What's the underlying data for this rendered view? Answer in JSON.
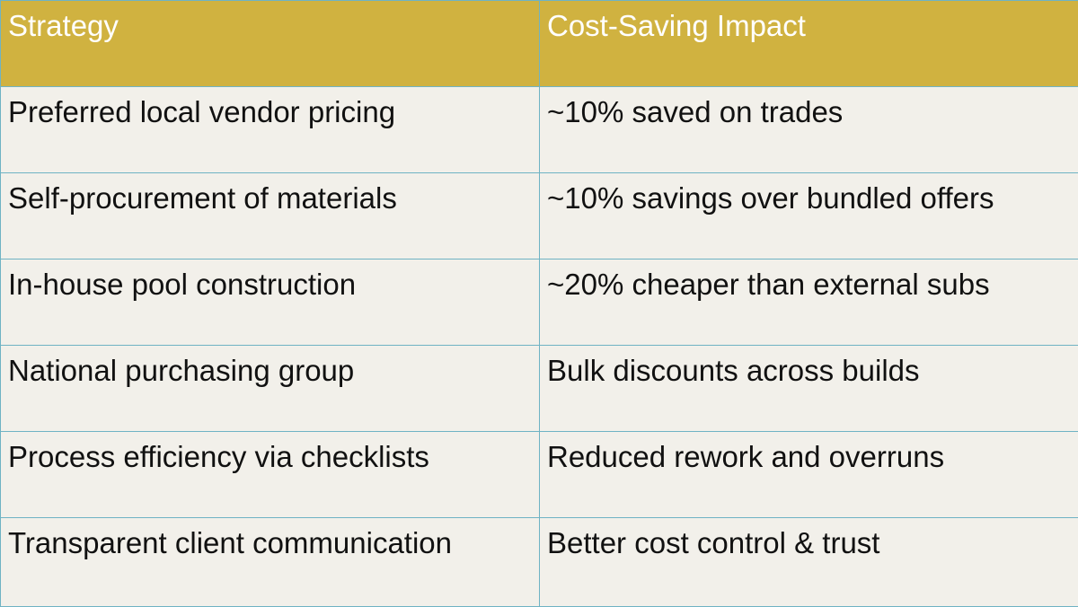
{
  "table": {
    "headers": [
      "Strategy",
      "Cost-Saving Impact"
    ],
    "rows": [
      [
        "Preferred local vendor pricing",
        "~10% saved on trades"
      ],
      [
        "Self-procurement of materials",
        "~10% savings over bundled offers"
      ],
      [
        "In-house pool construction",
        "~20% cheaper than external subs"
      ],
      [
        "National purchasing group",
        "Bulk discounts across builds"
      ],
      [
        "Process efficiency via checklists",
        "Reduced rework and overruns"
      ],
      [
        "Transparent client communication",
        "Better cost control & trust"
      ]
    ]
  },
  "colors": {
    "header_background": "#d0b240",
    "header_text": "#ffffff",
    "cell_background": "#f2f0ea",
    "cell_text": "#111111",
    "border": "#6fb3c4"
  }
}
